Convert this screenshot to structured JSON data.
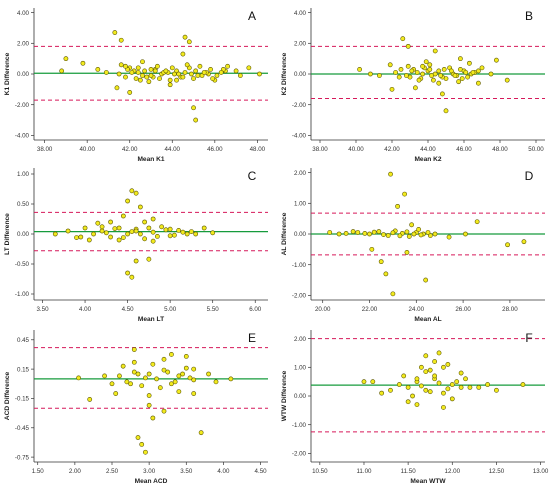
{
  "figure": {
    "colors": {
      "mean_line": "#169b3c",
      "limit_line": "#d6195a",
      "point_fill": "#f2ea1e",
      "point_stroke": "#5c5600",
      "axis": "#333333",
      "tick_text": "#333333",
      "label_text": "#1f1f1f"
    }
  },
  "chart_data": [
    {
      "type": "scatter",
      "panel_letter": "A",
      "title": "",
      "xlabel": "Mean K1",
      "ylabel": "K1 Difference",
      "xlim": [
        37.5,
        48.5
      ],
      "ylim": [
        -4.3,
        4.3
      ],
      "x_ticks": [
        "38.00",
        "40.00",
        "42.00",
        "44.00",
        "46.00",
        "48.00"
      ],
      "y_ticks": [
        "4.00",
        "2.00",
        "0.00",
        "-2.00",
        "-4.00"
      ],
      "mean_diff": 0.05,
      "upper_loa": 1.8,
      "lower_loa": -1.7,
      "grid": false,
      "x": [
        41.3,
        41.6,
        42.0,
        42.4,
        42.8,
        43.2,
        43.5,
        43.9,
        44.2,
        44.6,
        45.0,
        45.3,
        45.7,
        46.1,
        46.5,
        41.8,
        42.2,
        42.6,
        43.0,
        43.4,
        43.8,
        44.1,
        44.4,
        44.8,
        45.2,
        45.6,
        46.0,
        46.4,
        41.5,
        41.9,
        42.3,
        42.7,
        43.1,
        43.6,
        44.0,
        44.5,
        44.9,
        45.4,
        45.8,
        46.3,
        42.1,
        42.5,
        43.3,
        44.3,
        45.1,
        39.0,
        39.8,
        40.5,
        38.8,
        47.2,
        47.6,
        48.1,
        41.4,
        42.0,
        44.6,
        44.8,
        45.0,
        45.1,
        43.7,
        42.9,
        44.7,
        41.8,
        42.4,
        43.0,
        44.2,
        45.5,
        46.6,
        47.0,
        40.9,
        41.6,
        43.9,
        44.5,
        42.6,
        45.9,
        43.2
      ],
      "y": [
        2.7,
        2.2,
        0.4,
        0.1,
        -0.2,
        0.3,
        0.0,
        -0.4,
        0.2,
        0.1,
        -0.3,
        0.5,
        0.0,
        -0.1,
        0.2,
        -0.2,
        0.2,
        -0.1,
        0.3,
        -0.3,
        0.1,
        0.0,
        -0.2,
        0.4,
        -0.1,
        0.1,
        -0.4,
        0.3,
        0.0,
        0.3,
        -0.3,
        0.2,
        -0.2,
        0.1,
        0.4,
        -0.2,
        0.0,
        -0.1,
        0.3,
        0.1,
        0.1,
        -0.4,
        0.5,
        0.0,
        0.2,
        1.0,
        0.7,
        0.3,
        0.2,
        -0.1,
        0.4,
        0.0,
        -0.9,
        -1.2,
        2.4,
        2.1,
        -2.2,
        -3.0,
        0.2,
        -0.5,
        0.6,
        0.5,
        0.4,
        -0.1,
        -0.4,
        0.1,
        0.5,
        0.2,
        0.1,
        0.6,
        -0.7,
        1.3,
        0.8,
        -0.3,
        0.2
      ]
    },
    {
      "type": "scatter",
      "panel_letter": "B",
      "title": "",
      "xlabel": "Mean K2",
      "ylabel": "K2 Difference",
      "xlim": [
        37.5,
        50.5
      ],
      "ylim": [
        -4.3,
        4.3
      ],
      "x_ticks": [
        "38.00",
        "40.00",
        "42.00",
        "44.00",
        "46.00",
        "48.00",
        "50.00"
      ],
      "y_ticks": [
        "4.00",
        "2.00",
        "0.00",
        "-2.00",
        "-4.00"
      ],
      "mean_diff": 0.0,
      "upper_loa": 1.8,
      "lower_loa": -1.6,
      "grid": false,
      "x": [
        42.5,
        43.0,
        43.4,
        43.8,
        44.2,
        44.6,
        45.0,
        45.4,
        45.8,
        46.2,
        46.6,
        42.8,
        43.2,
        43.6,
        44.0,
        44.4,
        44.8,
        45.2,
        45.6,
        46.0,
        46.4,
        42.2,
        42.9,
        43.5,
        44.1,
        44.7,
        45.3,
        45.9,
        46.5,
        47.0,
        47.5,
        42.4,
        43.1,
        43.7,
        44.3,
        44.9,
        45.5,
        46.1,
        46.8,
        40.2,
        40.8,
        41.3,
        48.4,
        42.6,
        42.9,
        44.4,
        45.8,
        44.8,
        43.3,
        42.0,
        45.0,
        46.3,
        47.8,
        41.9,
        43.9,
        44.6,
        45.7,
        44.1,
        46.8,
        43.7
      ],
      "y": [
        0.3,
        -0.2,
        0.1,
        0.4,
        -0.1,
        0.2,
        -0.3,
        0.0,
        0.3,
        -0.2,
        0.1,
        -0.1,
        0.3,
        -0.3,
        0.2,
        0.0,
        -0.2,
        0.4,
        -0.1,
        0.2,
        0.0,
        0.1,
        0.5,
        -0.4,
        0.3,
        -0.1,
        0.2,
        -0.3,
        0.1,
        0.4,
        0.0,
        -0.2,
        0.2,
        0.0,
        -0.4,
        0.3,
        -0.1,
        0.1,
        0.2,
        0.3,
        0.0,
        -0.1,
        -0.4,
        2.3,
        1.8,
        1.5,
        1.0,
        -1.3,
        -0.9,
        -1.0,
        -2.4,
        0.7,
        0.9,
        0.6,
        0.8,
        -0.6,
        -0.5,
        0.6,
        -0.6,
        0.5
      ]
    },
    {
      "type": "scatter",
      "panel_letter": "C",
      "title": "",
      "xlabel": "Mean LT",
      "ylabel": "LT Difference",
      "xlim": [
        3.4,
        6.15
      ],
      "ylim": [
        -1.1,
        1.1
      ],
      "x_ticks": [
        "3.50",
        "4.00",
        "4.50",
        "5.00",
        "5.50",
        "6.00"
      ],
      "y_ticks": [
        "1.00",
        "0.50",
        "0.00",
        "-0.50",
        "-1.00"
      ],
      "mean_diff": 0.04,
      "upper_loa": 0.36,
      "lower_loa": -0.28,
      "grid": false,
      "x": [
        4.2,
        4.3,
        4.4,
        4.5,
        4.6,
        4.7,
        4.8,
        4.9,
        5.0,
        5.1,
        5.2,
        4.25,
        4.35,
        4.45,
        4.55,
        4.65,
        4.75,
        4.85,
        4.95,
        5.05,
        5.15,
        4.1,
        4.2,
        4.4,
        4.6,
        4.8,
        5.0,
        5.3,
        5.5,
        3.65,
        3.8,
        3.9,
        4.0,
        4.05,
        4.15,
        4.5,
        4.55,
        4.6,
        4.65,
        4.7,
        4.6,
        4.5,
        4.55,
        4.75,
        4.45,
        5.4,
        4.3,
        3.95,
        4.8,
        5.25
      ],
      "y": [
        0.05,
        -0.05,
        0.1,
        0.0,
        0.08,
        -0.08,
        0.03,
        0.12,
        -0.03,
        0.06,
        0.0,
        0.02,
        0.09,
        -0.06,
        0.04,
        0.0,
        0.1,
        -0.04,
        0.07,
        -0.02,
        0.03,
        0.0,
        0.12,
        -0.1,
        0.05,
        -0.12,
        0.08,
        0.0,
        0.02,
        0.0,
        0.05,
        -0.06,
        0.1,
        -0.1,
        0.18,
        0.55,
        0.72,
        0.68,
        0.45,
        0.2,
        -0.45,
        -0.65,
        -0.72,
        -0.42,
        0.3,
        0.1,
        0.2,
        -0.05,
        0.25,
        0.04
      ]
    },
    {
      "type": "scatter",
      "panel_letter": "D",
      "title": "",
      "xlabel": "Mean AL",
      "ylabel": "AL Difference",
      "xlim": [
        19.5,
        29.5
      ],
      "ylim": [
        -2.15,
        2.15
      ],
      "x_ticks": [
        "20.00",
        "22.00",
        "24.00",
        "26.00",
        "28.00"
      ],
      "y_ticks": [
        "2.00",
        "1.00",
        "0.00",
        "-1.00",
        "-2.00"
      ],
      "mean_diff": 0.0,
      "upper_loa": 0.68,
      "lower_loa": -0.68,
      "grid": false,
      "x": [
        21.5,
        22.0,
        22.4,
        22.8,
        23.1,
        23.4,
        23.7,
        24.0,
        24.3,
        24.6,
        21.8,
        22.2,
        22.6,
        23.0,
        23.3,
        23.6,
        23.9,
        24.2,
        24.5,
        24.8,
        20.3,
        20.7,
        21.0,
        21.3,
        22.9,
        23.5,
        23.2,
        23.8,
        23.0,
        22.7,
        24.4,
        22.5,
        23.6,
        26.6,
        27.9,
        28.6,
        25.4,
        26.1,
        22.1,
        24.1
      ],
      "y": [
        0.05,
        0.0,
        0.08,
        -0.05,
        0.1,
        0.02,
        -0.08,
        0.05,
        0.0,
        -0.05,
        0.02,
        0.06,
        -0.02,
        0.04,
        -0.06,
        0.07,
        0.0,
        -0.03,
        0.05,
        0.0,
        0.05,
        0.0,
        0.02,
        0.08,
        1.95,
        1.3,
        0.9,
        0.3,
        -1.95,
        -1.3,
        -1.5,
        -0.9,
        -0.6,
        0.4,
        -0.35,
        -0.25,
        -0.1,
        0.0,
        -0.5,
        0.15
      ]
    },
    {
      "type": "scatter",
      "panel_letter": "E",
      "title": "",
      "xlabel": "Mean ACD",
      "ylabel": "ACD Difference",
      "xlim": [
        1.45,
        4.6
      ],
      "ylim": [
        -0.8,
        0.55
      ],
      "x_ticks": [
        "1.50",
        "2.00",
        "2.50",
        "3.00",
        "3.50",
        "4.00",
        "4.50"
      ],
      "y_ticks": [
        "0.45",
        "0.15",
        "-0.15",
        "-0.45",
        "-0.75"
      ],
      "mean_diff": 0.05,
      "upper_loa": 0.37,
      "lower_loa": -0.25,
      "grid": false,
      "x": [
        2.6,
        2.7,
        2.8,
        2.9,
        3.0,
        3.1,
        3.2,
        3.3,
        3.4,
        3.5,
        3.6,
        2.65,
        2.75,
        2.85,
        2.95,
        3.05,
        3.15,
        3.25,
        3.35,
        3.45,
        3.55,
        2.55,
        2.8,
        3.0,
        3.2,
        3.4,
        3.6,
        3.8,
        3.9,
        4.1,
        2.05,
        2.2,
        2.4,
        2.5,
        2.85,
        2.9,
        2.95,
        3.05,
        3.3,
        3.5,
        3.0,
        2.8,
        3.6,
        3.2,
        3.7
      ],
      "y": [
        0.08,
        0.02,
        0.12,
        -0.02,
        0.1,
        0.05,
        0.14,
        0.0,
        0.08,
        0.16,
        0.04,
        0.18,
        0.0,
        0.1,
        0.06,
        0.2,
        -0.04,
        0.12,
        0.02,
        0.1,
        0.06,
        -0.1,
        0.22,
        -0.12,
        0.25,
        -0.08,
        0.15,
        0.1,
        0.02,
        0.05,
        0.06,
        -0.16,
        0.08,
        0.0,
        -0.55,
        -0.62,
        -0.7,
        -0.35,
        0.3,
        0.28,
        -0.22,
        0.35,
        -0.1,
        -0.28,
        -0.5
      ]
    },
    {
      "type": "scatter",
      "panel_letter": "F",
      "title": "",
      "xlabel": "Mean WTW",
      "ylabel": "WTW Difference",
      "xlim": [
        10.4,
        13.05
      ],
      "ylim": [
        -2.3,
        2.3
      ],
      "x_ticks": [
        "10.50",
        "11.00",
        "11.50",
        "12.00",
        "12.50",
        "13.00"
      ],
      "y_ticks": [
        "2.00",
        "1.00",
        "0.00",
        "-1.00",
        "-2.00"
      ],
      "mean_diff": 0.38,
      "upper_loa": 2.0,
      "lower_loa": -1.25,
      "grid": false,
      "x": [
        11.5,
        11.6,
        11.7,
        11.8,
        11.9,
        12.0,
        12.1,
        11.55,
        11.65,
        11.75,
        11.85,
        11.95,
        12.05,
        12.2,
        11.3,
        11.4,
        11.2,
        11.1,
        12.3,
        12.4,
        12.5,
        11.7,
        11.8,
        11.9,
        11.75,
        11.85,
        11.6,
        11.5,
        12.0,
        12.1,
        11.0,
        12.8,
        11.8,
        11.9,
        11.7,
        11.6,
        11.95,
        12.15,
        11.45,
        11.65
      ],
      "y": [
        0.3,
        0.5,
        0.2,
        0.6,
        0.1,
        0.4,
        0.3,
        0.0,
        0.35,
        0.15,
        0.45,
        0.25,
        0.5,
        0.3,
        0.2,
        0.4,
        0.1,
        0.5,
        0.3,
        0.4,
        0.2,
        1.4,
        1.2,
        1.0,
        0.9,
        1.5,
        -0.3,
        -0.2,
        -0.1,
        0.8,
        0.5,
        0.4,
        0.7,
        -0.4,
        0.85,
        0.6,
        1.1,
        0.6,
        0.7,
        1.0
      ]
    }
  ]
}
